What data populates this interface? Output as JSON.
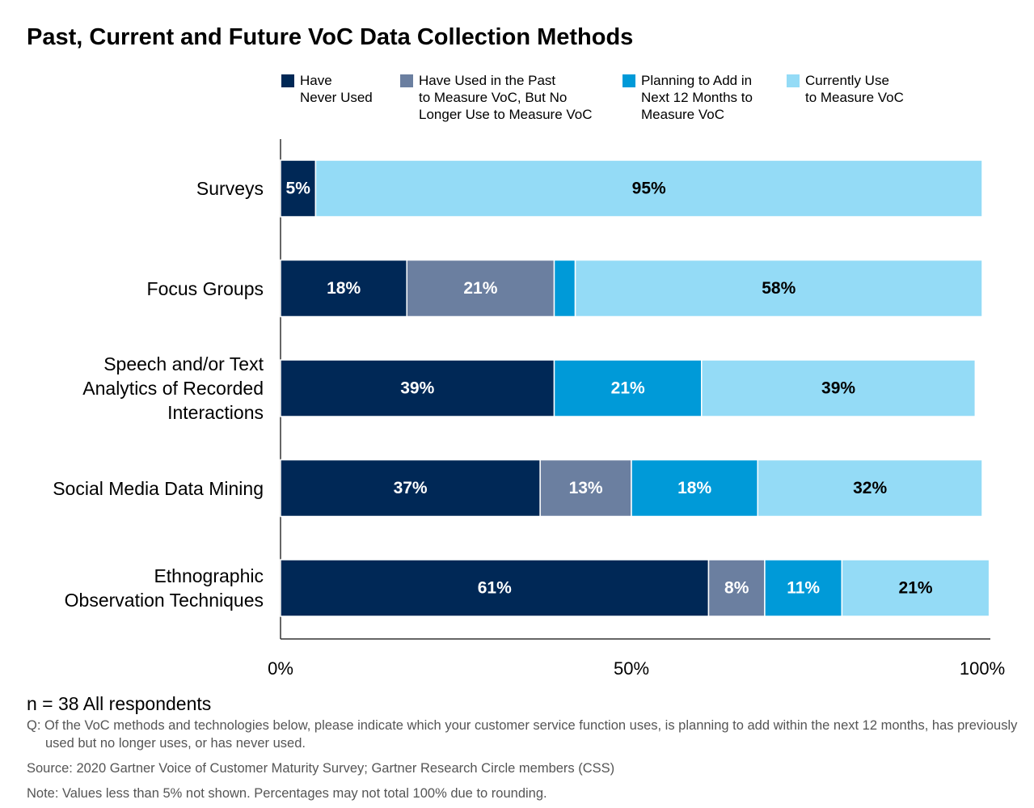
{
  "chart_data": {
    "type": "bar",
    "orientation": "horizontal",
    "stacked": true,
    "title": "Past, Current and Future VoC Data Collection Methods",
    "categories": [
      "Surveys",
      "Focus Groups",
      "Speech and/or Text\nAnalytics of Recorded\nInteractions",
      "Social Media Data Mining",
      "Ethnographic\nObservation Techniques"
    ],
    "series": [
      {
        "name": "Have\nNever Used",
        "color": "#002856",
        "values": [
          5,
          18,
          39,
          37,
          61
        ],
        "value_labels": [
          "5%",
          "18%",
          "39%",
          "37%",
          "61%"
        ]
      },
      {
        "name": "Have Used in the Past\nto Measure VoC, But No\nLonger Use to Measure VoC",
        "color": "#6b7fa0",
        "values": [
          0,
          21,
          0,
          13,
          8
        ],
        "value_labels": [
          null,
          "21%",
          null,
          "13%",
          "8%"
        ]
      },
      {
        "name": "Planning to Add in\nNext 12 Months to\nMeasure VoC",
        "color": "#009ad8",
        "values": [
          0,
          3,
          21,
          18,
          11
        ],
        "value_labels": [
          null,
          null,
          "21%",
          "18%",
          "11%"
        ]
      },
      {
        "name": "Currently Use\nto Measure VoC",
        "color": "#94dbf6",
        "values": [
          95,
          58,
          39,
          32,
          21
        ],
        "value_labels": [
          "95%",
          "58%",
          "39%",
          "32%",
          "21%"
        ]
      }
    ],
    "xlim": [
      0,
      100
    ],
    "xticks": [
      {
        "value": 0,
        "label": "0%"
      },
      {
        "value": 50,
        "label": "50%"
      },
      {
        "value": 100,
        "label": "100%"
      }
    ],
    "legend": "top",
    "grid": false,
    "notes": [
      "n = 38 All respondents",
      "Q: Of the VoC methods and technologies below, please indicate which your customer service function uses, is planning to add within the next 12 months, has previously used but no longer uses, or has never used.",
      "Source: 2020 Gartner Voice of Customer Maturity Survey; Gartner Research Circle members (CSS)",
      "Note: Values less than 5% not shown. Percentages may not total 100% due to rounding."
    ]
  }
}
